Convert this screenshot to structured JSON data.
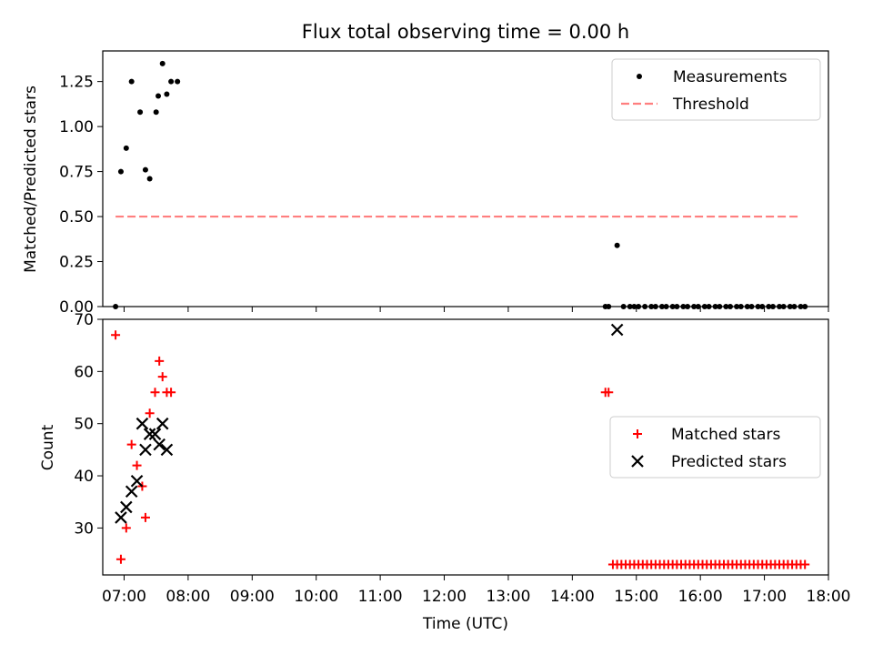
{
  "chart_data": [
    {
      "type": "scatter",
      "title": "Flux total observing time = 0.00 h",
      "xlabel": "",
      "ylabel": "Matched/Predicted stars",
      "xlim": [
        "06:40",
        "18:00"
      ],
      "ylim": [
        0,
        1.42
      ],
      "yticks": [
        "0.00",
        "0.25",
        "0.50",
        "0.75",
        "1.00",
        "1.25"
      ],
      "grid": false,
      "legend_position": "top-right",
      "series": [
        {
          "name": "Measurements",
          "marker": "dot",
          "color": "#000000",
          "x": [
            "06:52",
            "06:57",
            "07:02",
            "07:07",
            "07:15",
            "07:20",
            "07:24",
            "07:30",
            "07:32",
            "07:36",
            "07:40",
            "07:44",
            "07:50",
            "14:31",
            "14:34",
            "14:42",
            "14:48",
            "14:54",
            "14:58",
            "15:02",
            "15:08",
            "15:14",
            "15:18",
            "15:24",
            "15:28",
            "15:34",
            "15:38",
            "15:44",
            "15:48",
            "15:54",
            "15:58",
            "16:04",
            "16:08",
            "16:14",
            "16:18",
            "16:24",
            "16:28",
            "16:34",
            "16:38",
            "16:44",
            "16:48",
            "16:54",
            "16:58",
            "17:04",
            "17:08",
            "17:14",
            "17:18",
            "17:24",
            "17:28",
            "17:34",
            "17:38"
          ],
          "y": [
            0.0,
            0.75,
            0.88,
            1.25,
            1.08,
            0.76,
            0.71,
            1.08,
            1.17,
            1.35,
            1.18,
            1.25,
            1.25,
            0.0,
            0.0,
            0.34,
            0.0,
            0.0,
            0.0,
            0.0,
            0.0,
            0.0,
            0.0,
            0.0,
            0.0,
            0.0,
            0.0,
            0.0,
            0.0,
            0.0,
            0.0,
            0.0,
            0.0,
            0.0,
            0.0,
            0.0,
            0.0,
            0.0,
            0.0,
            0.0,
            0.0,
            0.0,
            0.0,
            0.0,
            0.0,
            0.0,
            0.0,
            0.0,
            0.0,
            0.0,
            0.0
          ]
        },
        {
          "name": "Threshold",
          "style": "dashed-line",
          "color": "#ff7f7f",
          "x": [
            "06:52",
            "17:32"
          ],
          "y": [
            0.5,
            0.5
          ]
        }
      ]
    },
    {
      "type": "scatter",
      "title": "",
      "xlabel": "Time (UTC)",
      "ylabel": "Count",
      "xlim": [
        "06:40",
        "18:00"
      ],
      "ylim": [
        21,
        70
      ],
      "yticks": [
        "30",
        "40",
        "50",
        "60",
        "70"
      ],
      "xticks": [
        "07:00",
        "08:00",
        "09:00",
        "10:00",
        "11:00",
        "12:00",
        "13:00",
        "14:00",
        "15:00",
        "16:00",
        "17:00",
        "18:00"
      ],
      "grid": false,
      "legend_position": "center-right",
      "series": [
        {
          "name": "Matched stars",
          "marker": "plus",
          "color": "#ff0000",
          "x": [
            "06:52",
            "06:57",
            "07:02",
            "07:07",
            "07:12",
            "07:17",
            "07:20",
            "07:24",
            "07:29",
            "07:33",
            "07:36",
            "07:40",
            "07:44",
            "14:31",
            "14:34",
            "14:38",
            "14:42",
            "14:46",
            "14:50",
            "14:54",
            "14:58",
            "15:02",
            "15:06",
            "15:10",
            "15:14",
            "15:18",
            "15:22",
            "15:26",
            "15:30",
            "15:34",
            "15:38",
            "15:42",
            "15:46",
            "15:50",
            "15:54",
            "15:58",
            "16:02",
            "16:06",
            "16:10",
            "16:14",
            "16:18",
            "16:22",
            "16:26",
            "16:30",
            "16:34",
            "16:38",
            "16:42",
            "16:46",
            "16:50",
            "16:54",
            "16:58",
            "17:02",
            "17:06",
            "17:10",
            "17:14",
            "17:18",
            "17:22",
            "17:26",
            "17:30",
            "17:34",
            "17:38"
          ],
          "y": [
            67,
            24,
            30,
            46,
            42,
            38,
            32,
            52,
            56,
            62,
            59,
            56,
            56,
            56,
            56,
            23,
            23,
            23,
            23,
            23,
            23,
            23,
            23,
            23,
            23,
            23,
            23,
            23,
            23,
            23,
            23,
            23,
            23,
            23,
            23,
            23,
            23,
            23,
            23,
            23,
            23,
            23,
            23,
            23,
            23,
            23,
            23,
            23,
            23,
            23,
            23,
            23,
            23,
            23,
            23,
            23,
            23,
            23,
            23,
            23,
            23
          ]
        },
        {
          "name": "Predicted stars",
          "marker": "x",
          "color": "#000000",
          "x": [
            "06:57",
            "07:02",
            "07:07",
            "07:12",
            "07:17",
            "07:20",
            "07:24",
            "07:29",
            "07:33",
            "07:36",
            "07:40",
            "14:42"
          ],
          "y": [
            32,
            34,
            37,
            39,
            50,
            45,
            48,
            48,
            46,
            50,
            45,
            68
          ]
        }
      ]
    }
  ]
}
